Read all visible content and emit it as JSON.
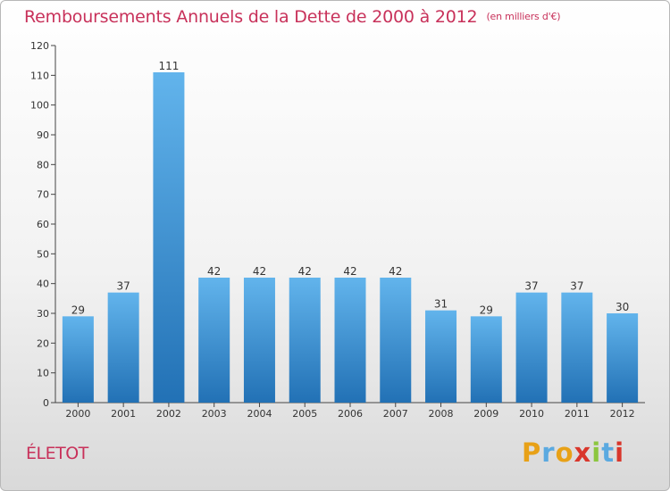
{
  "header": {
    "title": "Remboursements Annuels de la Dette de 2000 à 2012",
    "subtitle": "(en milliers d'€)"
  },
  "footer": {
    "commune": "ÉLETOT",
    "logo_text": "Proxiti"
  },
  "colors": {
    "title": "#c8315a",
    "bar_top": "#62b4ec",
    "bar_bottom": "#2271b5",
    "logo": [
      "#e8a117",
      "#5aa9e0",
      "#e8a117",
      "#d9362b",
      "#8cc63f",
      "#5aa9e0",
      "#d9362b"
    ]
  },
  "chart_data": {
    "type": "bar",
    "categories": [
      "2000",
      "2001",
      "2002",
      "2003",
      "2004",
      "2005",
      "2006",
      "2007",
      "2008",
      "2009",
      "2010",
      "2011",
      "2012"
    ],
    "values": [
      29,
      37,
      111,
      42,
      42,
      42,
      42,
      42,
      31,
      29,
      37,
      37,
      30
    ],
    "ylim": [
      0,
      120
    ],
    "yticks": [
      0,
      10,
      20,
      30,
      40,
      50,
      60,
      70,
      80,
      90,
      100,
      110,
      120
    ],
    "grid": false,
    "data_labels": true
  }
}
